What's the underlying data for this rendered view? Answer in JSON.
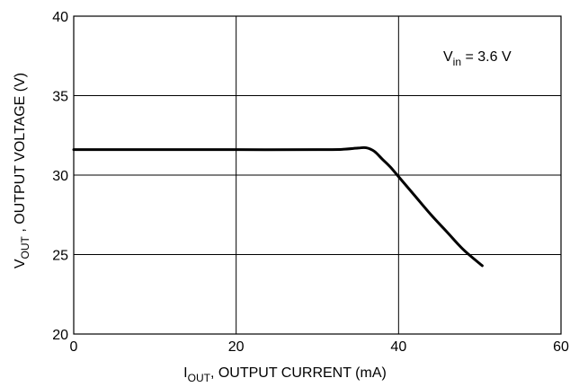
{
  "chart_data": {
    "type": "line",
    "xlim": [
      0,
      60
    ],
    "ylim": [
      20,
      40
    ],
    "x_ticks": [
      "0",
      "20",
      "40",
      "60"
    ],
    "y_ticks": [
      "20",
      "25",
      "30",
      "35",
      "40"
    ],
    "grid": true,
    "xlabel": {
      "main": "I",
      "sub": "OUT",
      "rest": ", OUTPUT CURRENT (mA)"
    },
    "ylabel": {
      "main": "V",
      "sub": "OUT",
      "rest": " , OUTPUT VOLTAGE (V)"
    },
    "annotation": {
      "main": "V",
      "sub": "in",
      "rest": " = 3.6 V"
    },
    "series": [
      {
        "x": [
          0,
          10,
          20,
          30,
          33,
          35,
          36,
          37,
          38,
          39,
          40,
          42,
          44,
          46,
          48,
          50.3
        ],
        "y": [
          31.6,
          31.6,
          31.6,
          31.6,
          31.62,
          31.7,
          31.72,
          31.5,
          31.0,
          30.5,
          29.9,
          28.7,
          27.5,
          26.4,
          25.3,
          24.3
        ]
      }
    ]
  }
}
